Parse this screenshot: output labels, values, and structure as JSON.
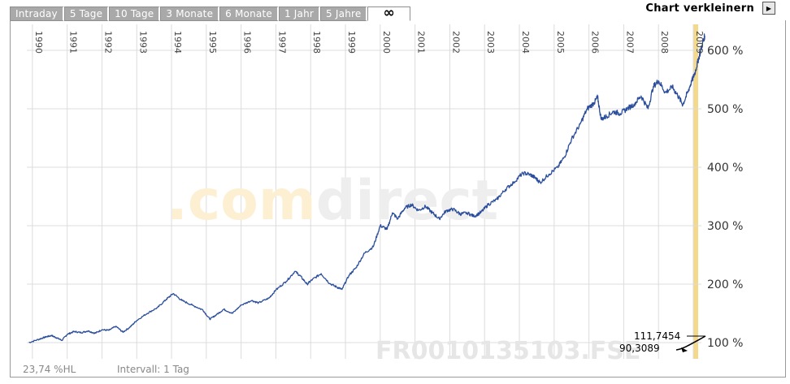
{
  "tabs": [
    {
      "label": "Intraday"
    },
    {
      "label": "5 Tage"
    },
    {
      "label": "10 Tage"
    },
    {
      "label": "3 Monate"
    },
    {
      "label": "6 Monate"
    },
    {
      "label": "1 Jahr"
    },
    {
      "label": "5 Jahre"
    },
    {
      "label": "∞"
    }
  ],
  "header": {
    "shrink_label": "Chart verkleinern",
    "shrink_icon": "play-right-icon"
  },
  "footer": {
    "hl_label": "23,74 %HL",
    "interval_label": "Intervall: 1 Tag"
  },
  "watermark": {
    "brand": ".comdirect",
    "isin": "FR0010135103.FSE"
  },
  "chart_data": {
    "type": "line",
    "title": "",
    "xlabel": "",
    "ylabel": "",
    "x_tick_labels": [
      "1990",
      "1991",
      "1992",
      "1993",
      "1994",
      "1995",
      "1996",
      "1997",
      "1998",
      "1999",
      "2000",
      "2001",
      "2002",
      "2003",
      "2004",
      "2005",
      "2006",
      "2007",
      "2008",
      "2009"
    ],
    "y_tick_labels": [
      "100 %",
      "200 %",
      "300 %",
      "400 %",
      "500 %",
      "600 %"
    ],
    "y_tick_values": [
      100,
      200,
      300,
      400,
      500,
      600
    ],
    "ylim": [
      60,
      640
    ],
    "xlim": [
      1989.9,
      2009.5
    ],
    "grid": true,
    "line_color": "#2b4e9c",
    "highlight_color": "#f5d98a",
    "highlight_start": 2009.0,
    "annotations": [
      {
        "text": "111,7454"
      },
      {
        "text": "90,3089"
      }
    ],
    "series": [
      {
        "x": [
          1989.9,
          1990.2,
          1990.4,
          1990.55,
          1990.7,
          1990.85,
          1991.0,
          1991.2,
          1991.4,
          1991.6,
          1991.8,
          1992.0,
          1992.2,
          1992.4,
          1992.6,
          1992.8,
          1993.0,
          1993.3,
          1993.6,
          1993.85,
          1994.05,
          1994.3,
          1994.6,
          1994.9,
          1995.1,
          1995.3,
          1995.5,
          1995.75,
          1996.0,
          1996.3,
          1996.5,
          1996.8,
          1997.0,
          1997.3,
          1997.55,
          1997.7,
          1997.9,
          1998.05,
          1998.3,
          1998.55,
          1998.75,
          1998.9,
          1999.1,
          1999.3,
          1999.55,
          1999.8,
          2000.0,
          2000.2,
          2000.35,
          2000.5,
          2000.7,
          2000.9,
          2001.1,
          2001.3,
          2001.5,
          2001.7,
          2001.9,
          2002.1,
          2002.3,
          2002.5,
          2002.7,
          2002.9,
          2003.1,
          2003.35,
          2003.6,
          2003.85,
          2004.1,
          2004.3,
          2004.45,
          2004.6,
          2004.85,
          2005.1,
          2005.3,
          2005.5,
          2005.75,
          2005.95,
          2006.15,
          2006.25,
          2006.35,
          2006.5,
          2006.7,
          2006.9,
          2007.1,
          2007.3,
          2007.5,
          2007.7,
          2007.85,
          2008.0,
          2008.2,
          2008.4,
          2008.55,
          2008.7,
          2008.85,
          2008.95,
          2009.05,
          2009.15,
          2009.25,
          2009.33
        ],
        "y": [
          100,
          106,
          110,
          112,
          108,
          104,
          114,
          119,
          117,
          120,
          116,
          122,
          121,
          128,
          118,
          126,
          138,
          150,
          160,
          174,
          184,
          172,
          164,
          156,
          140,
          148,
          157,
          150,
          164,
          172,
          168,
          176,
          190,
          205,
          222,
          214,
          200,
          208,
          218,
          201,
          195,
          191,
          215,
          228,
          253,
          264,
          300,
          294,
          322,
          312,
          330,
          336,
          326,
          333,
          322,
          312,
          326,
          328,
          320,
          322,
          316,
          323,
          336,
          345,
          362,
          375,
          390,
          388,
          382,
          374,
          388,
          400,
          418,
          448,
          474,
          500,
          510,
          520,
          482,
          487,
          495,
          492,
          500,
          508,
          522,
          500,
          538,
          548,
          528,
          537,
          523,
          507,
          530,
          546,
          562,
          585,
          608,
          625
        ]
      }
    ]
  }
}
